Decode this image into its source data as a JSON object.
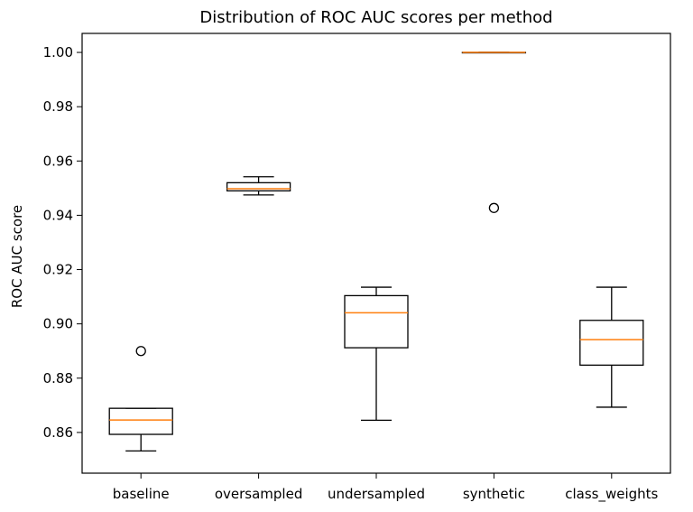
{
  "chart_data": {
    "type": "boxplot",
    "title": "Distribution of ROC AUC scores per method",
    "xlabel": "",
    "ylabel": "ROC AUC score",
    "ylim": [
      0.845,
      1.007
    ],
    "yticks": [
      0.86,
      0.88,
      0.9,
      0.92,
      0.94,
      0.96,
      0.98,
      1.0
    ],
    "ytick_labels": [
      "0.86",
      "0.88",
      "0.90",
      "0.92",
      "0.94",
      "0.96",
      "0.98",
      "1.00"
    ],
    "grid": false,
    "categories": [
      "baseline",
      "oversampled",
      "undersampled",
      "synthetic",
      "class_weights"
    ],
    "boxes": [
      {
        "whislo": 0.8532,
        "q1": 0.8593,
        "med": 0.8646,
        "q3": 0.8689,
        "whishi": 0.8689,
        "fliers": [
          0.89
        ]
      },
      {
        "whislo": 0.9475,
        "q1": 0.949,
        "med": 0.9498,
        "q3": 0.952,
        "whishi": 0.9542,
        "fliers": []
      },
      {
        "whislo": 0.8645,
        "q1": 0.8912,
        "med": 0.9041,
        "q3": 0.9104,
        "whishi": 0.9135,
        "fliers": []
      },
      {
        "whislo": 1.0,
        "q1": 1.0,
        "med": 1.0,
        "q3": 1.0,
        "whishi": 1.0,
        "fliers": [
          0.9427
        ]
      },
      {
        "whislo": 0.8693,
        "q1": 0.8848,
        "med": 0.8942,
        "q3": 0.9013,
        "whishi": 0.9135,
        "fliers": []
      }
    ],
    "colors": {
      "box": "#000000",
      "median": "#ff7f0e",
      "flier": "#000000"
    }
  }
}
